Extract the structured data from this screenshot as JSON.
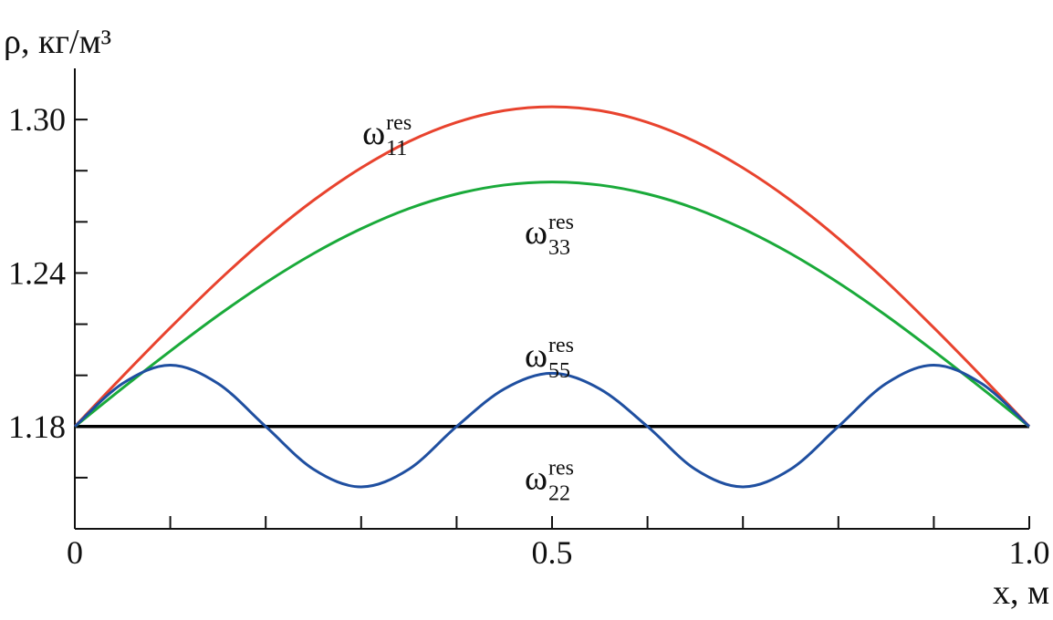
{
  "chart_data": {
    "type": "line",
    "y_label": "ρ, кг/м³",
    "x_label": "x, м",
    "x": [
      0,
      0.05,
      0.1,
      0.15,
      0.2,
      0.25,
      0.3,
      0.35,
      0.4,
      0.45,
      0.5,
      0.55,
      0.6,
      0.65,
      0.7,
      0.75,
      0.8,
      0.85,
      0.9,
      0.95,
      1
    ],
    "series": [
      {
        "name": "ω",
        "sub": "11",
        "sup": "res",
        "color": "#e8432e",
        "values": [
          1.18,
          1.1996,
          1.2186,
          1.2368,
          1.2535,
          1.2684,
          1.2811,
          1.2914,
          1.2989,
          1.3035,
          1.305,
          1.3035,
          1.2989,
          1.2914,
          1.2811,
          1.2684,
          1.2535,
          1.2368,
          1.2186,
          1.1996,
          1.18
        ]
      },
      {
        "name": "ω",
        "sub": "33",
        "sup": "res",
        "color": "#1aaa3a",
        "values": [
          1.18,
          1.195,
          1.2095,
          1.2234,
          1.2362,
          1.2476,
          1.2573,
          1.2652,
          1.2709,
          1.2744,
          1.2756,
          1.2744,
          1.2709,
          1.2652,
          1.2573,
          1.2476,
          1.2362,
          1.2234,
          1.2095,
          1.195,
          1.18
        ]
      },
      {
        "name": "ω",
        "sub": "55",
        "sup": "res",
        "color": "#1f4fa0",
        "values": [
          1.18,
          1.1968,
          1.204,
          1.1968,
          1.18,
          1.1633,
          1.1564,
          1.1633,
          1.18,
          1.1947,
          1.2008,
          1.1947,
          1.18,
          1.1633,
          1.1564,
          1.1633,
          1.18,
          1.1968,
          1.204,
          1.1968,
          1.18
        ]
      },
      {
        "name": "ω",
        "sub": "22",
        "sup": "res",
        "color": "#000000",
        "values": [
          1.18,
          1.18,
          1.18,
          1.18,
          1.18,
          1.18,
          1.18,
          1.18,
          1.18,
          1.18,
          1.18,
          1.18,
          1.18,
          1.18,
          1.18,
          1.18,
          1.18,
          1.18,
          1.18,
          1.18,
          1.18
        ]
      }
    ],
    "xlim": [
      0,
      1
    ],
    "ylim": [
      1.14,
      1.32
    ],
    "xticks": [
      0,
      0.5,
      {
        "value": 1,
        "label": "1.0"
      }
    ],
    "xticks_minor": [
      0.1,
      0.2,
      0.3,
      0.4,
      0.6,
      0.7,
      0.8,
      0.9
    ],
    "yticks": [
      1.18,
      1.24,
      {
        "value": 1.3,
        "label": "1.30"
      }
    ],
    "yticks_minor": [
      1.16,
      1.2,
      1.22,
      1.26,
      1.28
    ],
    "grid": false
  }
}
